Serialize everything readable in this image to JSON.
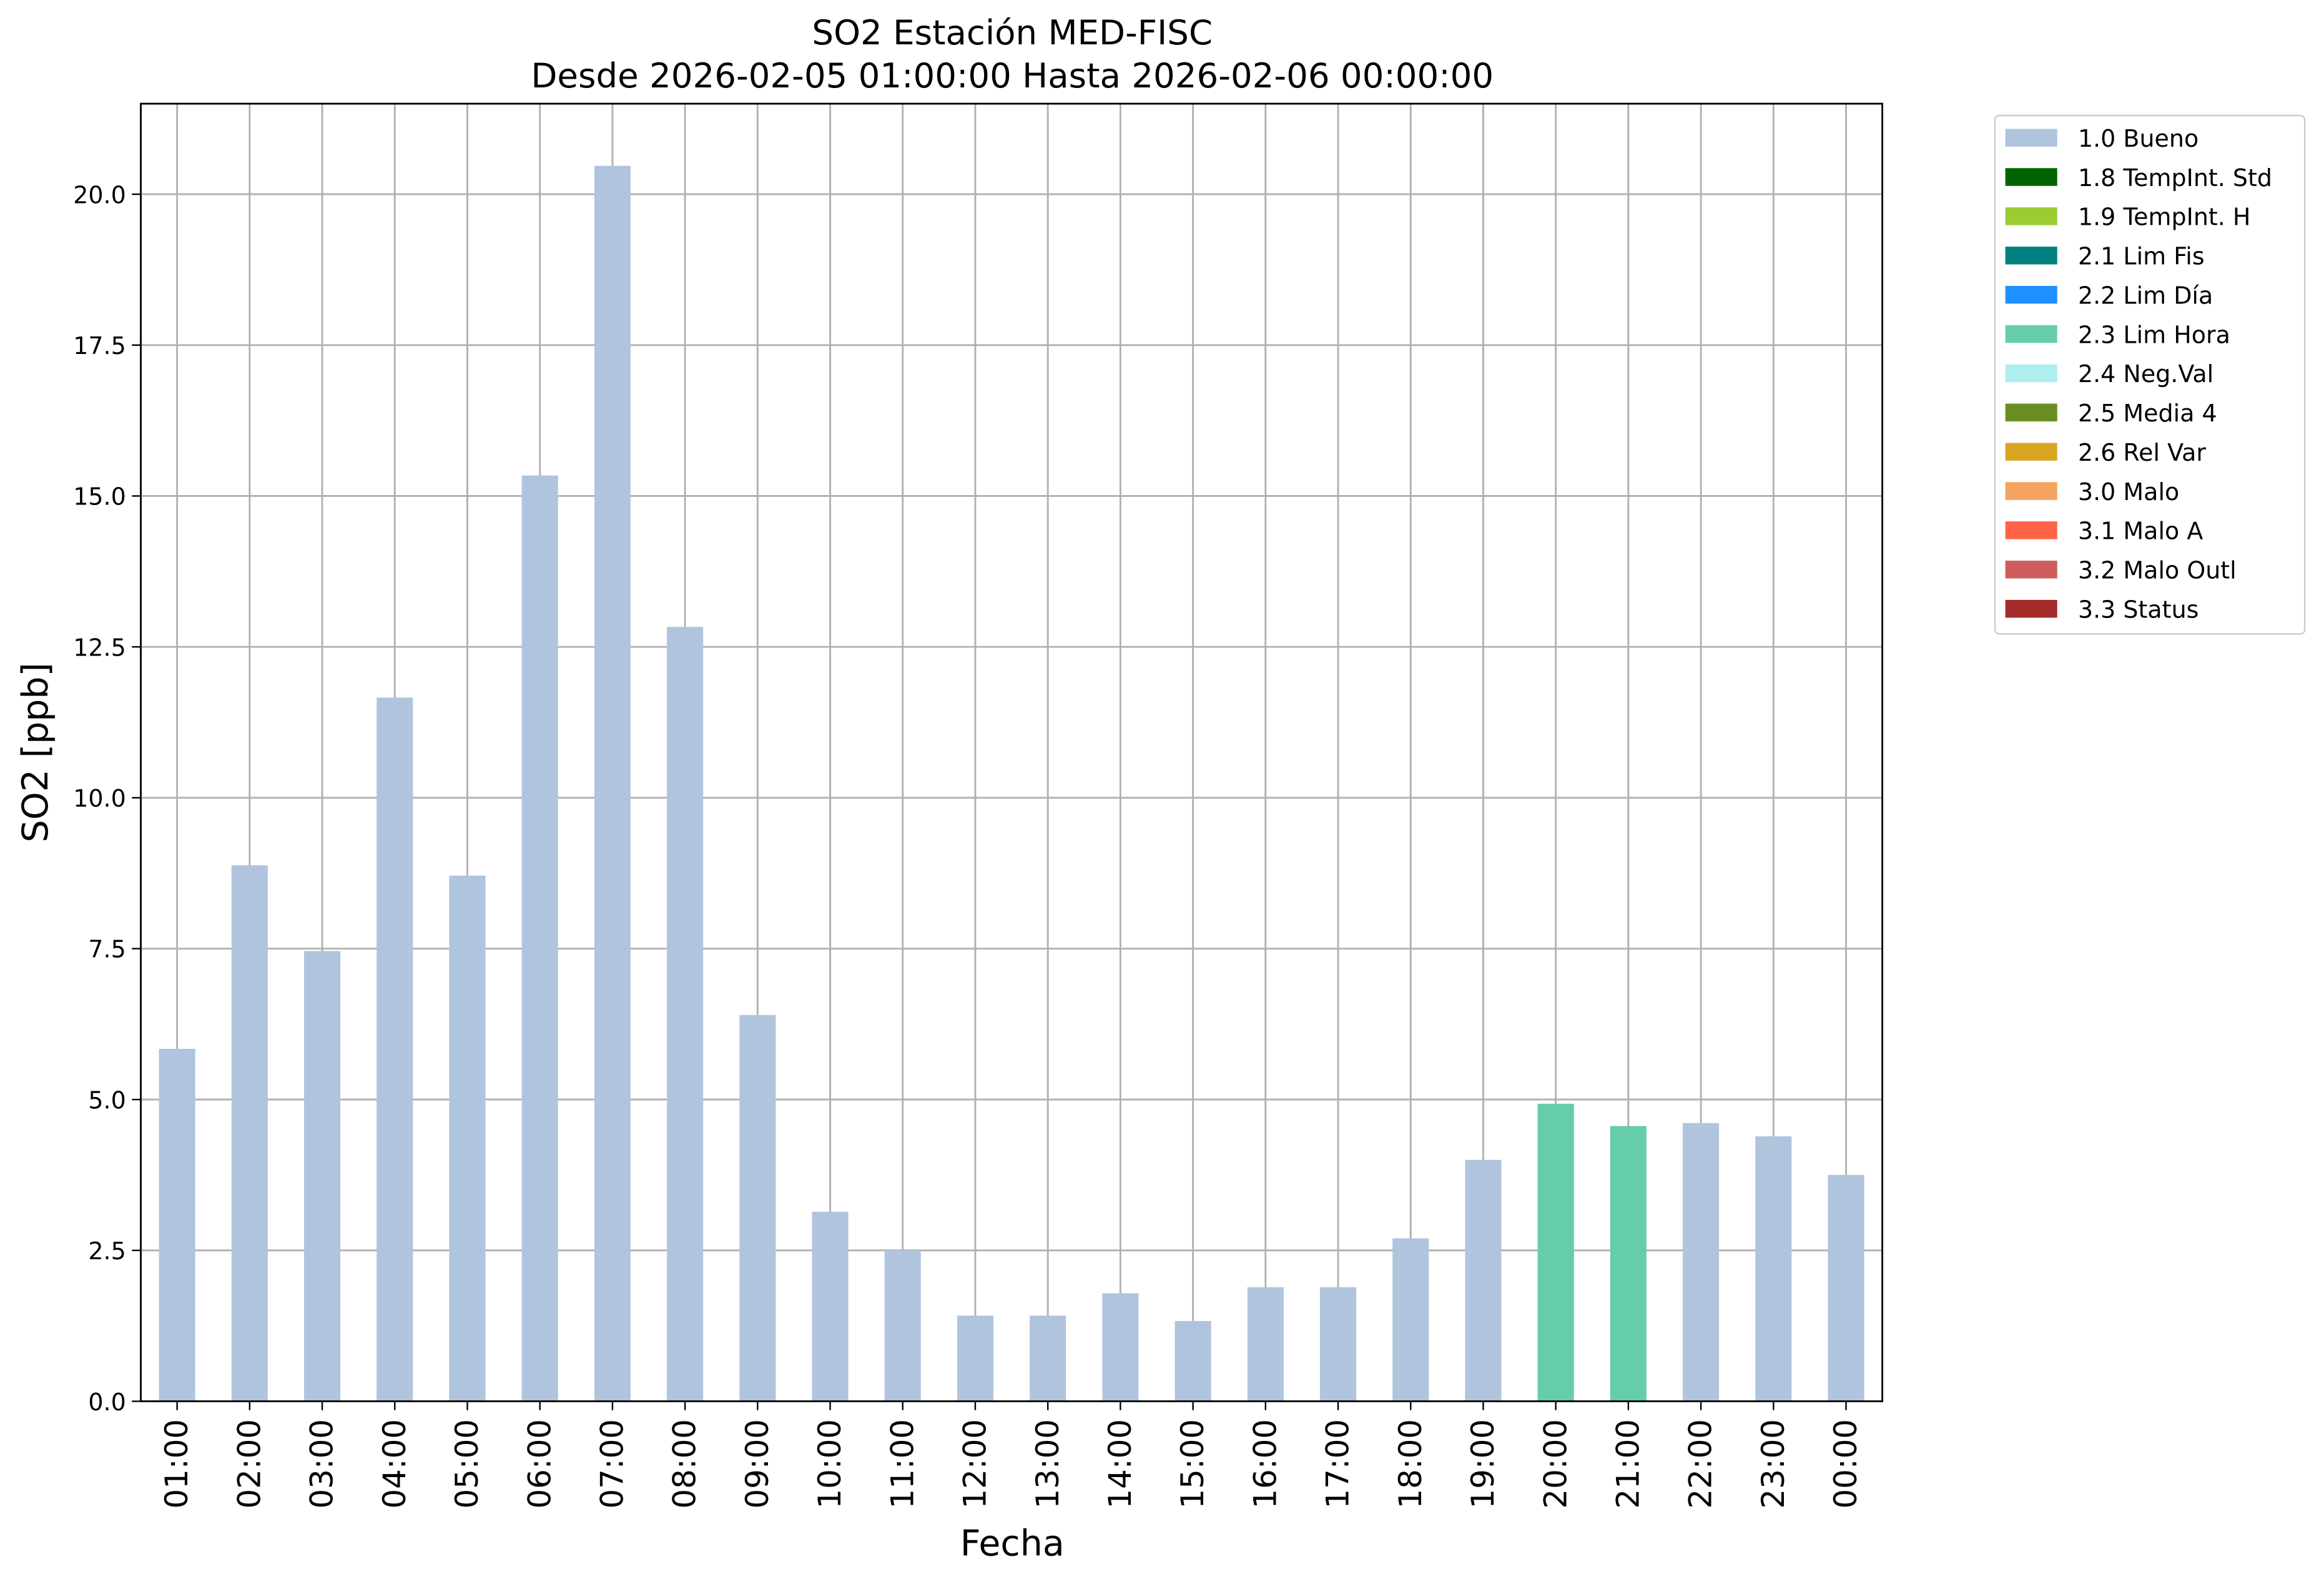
{
  "chart_data": {
    "type": "stacked_bar",
    "title": "SO2 Estación MED-FISC",
    "subtitle": "Desde 2026-02-05 01:00:00 Hasta 2026-02-06 00:00:00",
    "x_label": "Fecha",
    "y_label": "SO2 [ppb]",
    "categories": [
      "01:00",
      "02:00",
      "03:00",
      "04:00",
      "05:00",
      "06:00",
      "07:00",
      "08:00",
      "09:00",
      "10:00",
      "11:00",
      "12:00",
      "13:00",
      "14:00",
      "15:00",
      "16:00",
      "17:00",
      "18:00",
      "19:00",
      "20:00",
      "21:00",
      "22:00",
      "23:00",
      "00:00"
    ],
    "series": [
      {
        "name": "1.0 Bueno",
        "color": "#b0c4de",
        "values": [
          5.84,
          8.88,
          7.46,
          11.66,
          8.71,
          15.34,
          20.47,
          12.83,
          6.4,
          3.14,
          2.5,
          1.42,
          1.42,
          1.79,
          1.33,
          1.89,
          1.89,
          2.7,
          4.0,
          null,
          null,
          4.61,
          4.39,
          3.75
        ]
      },
      {
        "name": "1.8 TempInt. Std",
        "color": "#006400",
        "values": [
          null,
          null,
          null,
          null,
          null,
          null,
          null,
          null,
          null,
          null,
          null,
          null,
          null,
          null,
          null,
          null,
          null,
          null,
          null,
          null,
          null,
          null,
          null,
          null
        ]
      },
      {
        "name": "1.9 TempInt. H",
        "color": "#9acd32",
        "values": [
          null,
          null,
          null,
          null,
          null,
          null,
          null,
          null,
          null,
          null,
          null,
          null,
          null,
          null,
          null,
          null,
          null,
          null,
          null,
          null,
          null,
          null,
          null,
          null
        ]
      },
      {
        "name": "2.1 Lim Fis",
        "color": "#008080",
        "values": [
          null,
          null,
          null,
          null,
          null,
          null,
          null,
          null,
          null,
          null,
          null,
          null,
          null,
          null,
          null,
          null,
          null,
          null,
          null,
          null,
          null,
          null,
          null,
          null
        ]
      },
      {
        "name": "2.2 Lim Día",
        "color": "#1e90ff",
        "values": [
          null,
          null,
          null,
          null,
          null,
          null,
          null,
          null,
          null,
          null,
          null,
          null,
          null,
          null,
          null,
          null,
          null,
          null,
          null,
          null,
          null,
          null,
          null,
          null
        ]
      },
      {
        "name": "2.3 Lim Hora",
        "color": "#66cdaa",
        "values": [
          null,
          null,
          null,
          null,
          null,
          null,
          null,
          null,
          null,
          null,
          null,
          null,
          null,
          null,
          null,
          null,
          null,
          null,
          null,
          4.93,
          4.56,
          null,
          null,
          null
        ]
      },
      {
        "name": "2.4 Neg.Val",
        "color": "#afeeee",
        "values": [
          null,
          null,
          null,
          null,
          null,
          null,
          null,
          null,
          null,
          null,
          null,
          null,
          null,
          null,
          null,
          null,
          null,
          null,
          null,
          null,
          null,
          null,
          null,
          null
        ]
      },
      {
        "name": "2.5 Media 4",
        "color": "#6b8e23",
        "values": [
          null,
          null,
          null,
          null,
          null,
          null,
          null,
          null,
          null,
          null,
          null,
          null,
          null,
          null,
          null,
          null,
          null,
          null,
          null,
          null,
          null,
          null,
          null,
          null
        ]
      },
      {
        "name": "2.6 Rel Var",
        "color": "#daa520",
        "values": [
          null,
          null,
          null,
          null,
          null,
          null,
          null,
          null,
          null,
          null,
          null,
          null,
          null,
          null,
          null,
          null,
          null,
          null,
          null,
          null,
          null,
          null,
          null,
          null
        ]
      },
      {
        "name": "3.0 Malo",
        "color": "#f4a460",
        "values": [
          null,
          null,
          null,
          null,
          null,
          null,
          null,
          null,
          null,
          null,
          null,
          null,
          null,
          null,
          null,
          null,
          null,
          null,
          null,
          null,
          null,
          null,
          null,
          null
        ]
      },
      {
        "name": "3.1 Malo A",
        "color": "#ff6347",
        "values": [
          null,
          null,
          null,
          null,
          null,
          null,
          null,
          null,
          null,
          null,
          null,
          null,
          null,
          null,
          null,
          null,
          null,
          null,
          null,
          null,
          null,
          null,
          null,
          null
        ]
      },
      {
        "name": "3.2 Malo Outl",
        "color": "#cd5c5c",
        "values": [
          null,
          null,
          null,
          null,
          null,
          null,
          null,
          null,
          null,
          null,
          null,
          null,
          null,
          null,
          null,
          null,
          null,
          null,
          null,
          null,
          null,
          null,
          null,
          null
        ]
      },
      {
        "name": "3.3 Status",
        "color": "#a52a2a",
        "values": [
          null,
          null,
          null,
          null,
          null,
          null,
          null,
          null,
          null,
          null,
          null,
          null,
          null,
          null,
          null,
          null,
          null,
          null,
          null,
          null,
          null,
          null,
          null,
          null
        ]
      }
    ],
    "ylim": [
      0,
      21.5
    ],
    "yticks": [
      {
        "value": 0,
        "label": "0.0"
      },
      2.5,
      {
        "value": 5,
        "label": "5.0"
      },
      7.5,
      {
        "value": 10,
        "label": "10.0"
      },
      12.5,
      {
        "value": 15,
        "label": "15.0"
      },
      17.5,
      {
        "value": 20,
        "label": "20.0"
      }
    ],
    "grid": true,
    "legend": "outside upper right"
  }
}
